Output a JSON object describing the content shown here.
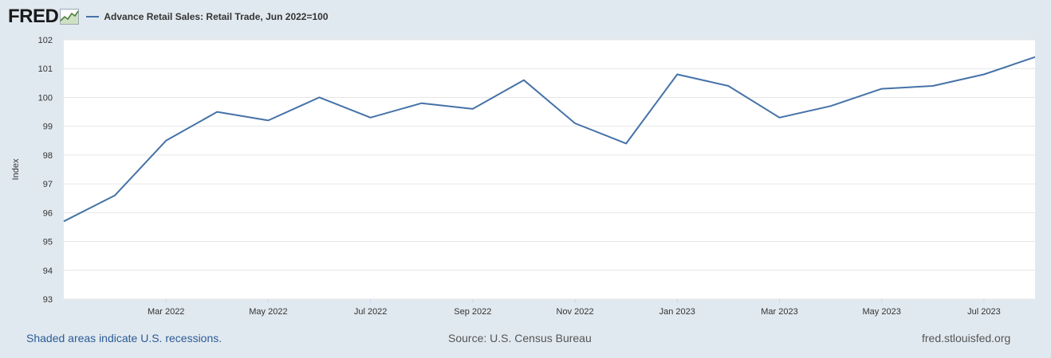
{
  "header": {
    "logo_text": "FRED",
    "series_label": "Advance Retail Sales: Retail Trade, Jun 2022=100",
    "series_color": "#4572a7"
  },
  "footer": {
    "recession_note": "Shaded areas indicate U.S. recessions.",
    "source": "Source: U.S. Census Bureau",
    "site": "fred.stlouisfed.org"
  },
  "chart_data": {
    "type": "line",
    "title": "",
    "xlabel": "",
    "ylabel": "Index",
    "ylim": [
      93,
      102
    ],
    "yticks": [
      93,
      94,
      95,
      96,
      97,
      98,
      99,
      100,
      101,
      102
    ],
    "grid": true,
    "xlim": [
      "2022-01",
      "2023-08"
    ],
    "xticks": [
      {
        "x": "2022-03",
        "label": "Mar 2022"
      },
      {
        "x": "2022-05",
        "label": "May 2022"
      },
      {
        "x": "2022-07",
        "label": "Jul 2022"
      },
      {
        "x": "2022-09",
        "label": "Sep 2022"
      },
      {
        "x": "2022-11",
        "label": "Nov 2022"
      },
      {
        "x": "2023-01",
        "label": "Jan 2023"
      },
      {
        "x": "2023-03",
        "label": "Mar 2023"
      },
      {
        "x": "2023-05",
        "label": "May 2023"
      },
      {
        "x": "2023-07",
        "label": "Jul 2023"
      }
    ],
    "series": [
      {
        "name": "Advance Retail Sales: Retail Trade, Jun 2022=100",
        "color": "#4572a7",
        "x": [
          "2022-01",
          "2022-02",
          "2022-03",
          "2022-04",
          "2022-05",
          "2022-06",
          "2022-07",
          "2022-08",
          "2022-09",
          "2022-10",
          "2022-11",
          "2022-12",
          "2023-01",
          "2023-02",
          "2023-03",
          "2023-04",
          "2023-05",
          "2023-06",
          "2023-07",
          "2023-08"
        ],
        "y": [
          95.7,
          96.6,
          98.5,
          99.5,
          99.2,
          100.0,
          99.3,
          99.8,
          99.6,
          100.6,
          99.1,
          98.4,
          100.8,
          100.4,
          99.3,
          99.7,
          100.3,
          100.4,
          100.8,
          101.4
        ]
      }
    ]
  }
}
